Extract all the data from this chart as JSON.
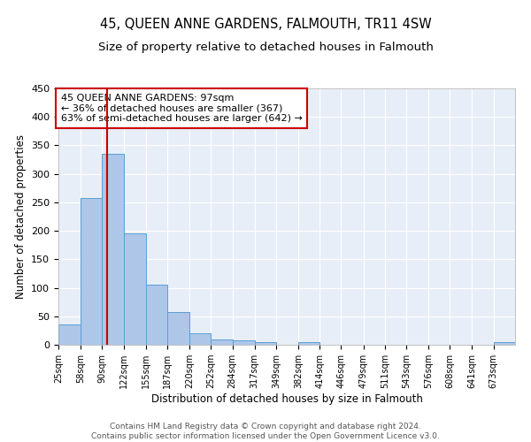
{
  "title": "45, QUEEN ANNE GARDENS, FALMOUTH, TR11 4SW",
  "subtitle": "Size of property relative to detached houses in Falmouth",
  "xlabel": "Distribution of detached houses by size in Falmouth",
  "ylabel": "Number of detached properties",
  "bar_values": [
    35,
    257,
    335,
    195,
    105,
    57,
    20,
    10,
    7,
    5,
    0,
    4,
    0,
    0,
    0,
    0,
    0,
    0,
    0,
    0,
    4
  ],
  "bin_edges": [
    25,
    58,
    90,
    122,
    155,
    187,
    220,
    252,
    284,
    317,
    349,
    382,
    414,
    446,
    479,
    511,
    543,
    576,
    608,
    641,
    673,
    705
  ],
  "tick_labels": [
    "25sqm",
    "58sqm",
    "90sqm",
    "122sqm",
    "155sqm",
    "187sqm",
    "220sqm",
    "252sqm",
    "284sqm",
    "317sqm",
    "349sqm",
    "382sqm",
    "414sqm",
    "446sqm",
    "479sqm",
    "511sqm",
    "543sqm",
    "576sqm",
    "608sqm",
    "641sqm",
    "673sqm"
  ],
  "bar_color": "#aec6e8",
  "bar_edge_color": "#5a9fd4",
  "vline_x": 97,
  "vline_color": "#cc0000",
  "ylim": [
    0,
    450
  ],
  "annotation_text": "45 QUEEN ANNE GARDENS: 97sqm\n← 36% of detached houses are smaller (367)\n63% of semi-detached houses are larger (642) →",
  "annotation_box_color": "#ffffff",
  "annotation_box_edge": "#cc0000",
  "footer_text": "Contains HM Land Registry data © Crown copyright and database right 2024.\nContains public sector information licensed under the Open Government Licence v3.0.",
  "title_fontsize": 10.5,
  "subtitle_fontsize": 9.5,
  "axis_label_fontsize": 8.5,
  "tick_fontsize": 7,
  "annotation_fontsize": 8,
  "footer_fontsize": 6.5
}
